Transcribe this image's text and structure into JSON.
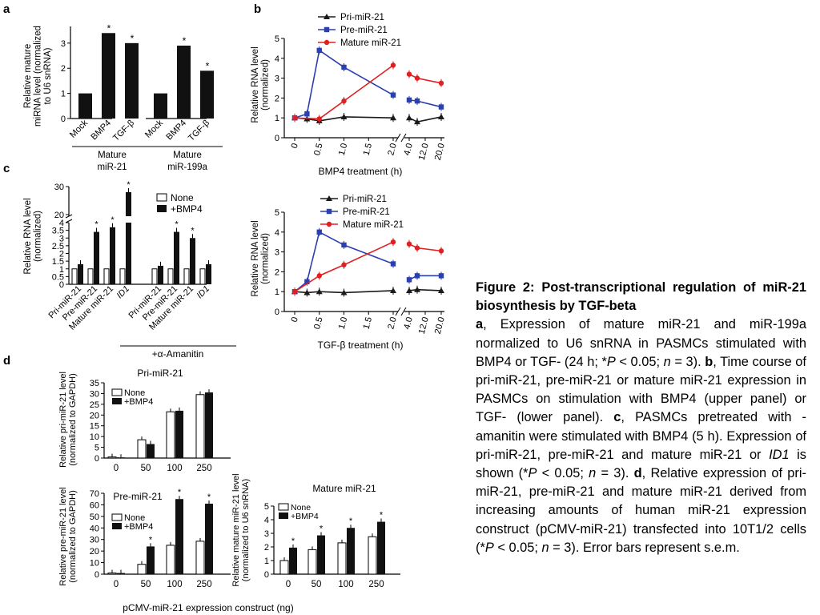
{
  "caption": {
    "title": "Figure 2: Post-transcriptional regulation of miR-21 biosynthesis by TGF-beta",
    "a_letter": "a",
    "a_text": ", Expression of mature miR-21 and miR-199a normalized to U6 snRNA in PASMCs stimulated with BMP4 or TGF- (24 h; *",
    "P": "P",
    "lt": " < 0.05; ",
    "n": "n",
    "eq3": " = 3). ",
    "b_letter": "b",
    "b_text": ", Time course of pri-miR-21, pre-miR-21 or mature miR-21 expression in PASMCs on stimulation with BMP4 (upper panel) or TGF- (lower panel). ",
    "c_letter": "c",
    "c_text": ", PASMCs pretreated with -amanitin were stimulated with BMP4 (5 h). Expression of pri-miR-21, pre-miR-21 and mature miR-21 or ",
    "id1": "ID1",
    "c_text2": " is shown (*",
    "d_letter": "d",
    "d_text": ", Relative expression of pri-miR-21, pre-miR-21 and mature miR-21 derived from increasing amounts of human miR-21 expression construct (pCMV-miR-21) transfected into 10T1/2 cells (*",
    "end_text": " = 3). Error bars represent s.e.m."
  },
  "panel_letters": {
    "a": "a",
    "b": "b",
    "c": "c",
    "d": "d"
  },
  "common": {
    "star": "*",
    "amanitin": "+α-Amanitin"
  },
  "chart_data": [
    {
      "id": "a",
      "type": "bar",
      "ylabel": "Relative mature miRNA level (normalized to U6 snRNA)",
      "ylabel_lines": [
        "Relative mature",
        "miRNA level (normalized",
        "to U6 snRNA)"
      ],
      "yticks": [
        "0",
        "1",
        "2",
        "3"
      ],
      "ylim": [
        0,
        3.6
      ],
      "groups": [
        {
          "name": "Mature miR-21",
          "name_lines": [
            "Mature",
            "miR-21"
          ],
          "categories": [
            "Mock",
            "BMP4",
            "TGF-β"
          ],
          "values": [
            1.0,
            3.4,
            3.0
          ],
          "stars": [
            false,
            true,
            true
          ]
        },
        {
          "name": "Mature miR-199a",
          "name_lines": [
            "Mature",
            "miR-199a"
          ],
          "categories": [
            "Mock",
            "BMP4",
            "TGF-β"
          ],
          "values": [
            1.0,
            2.9,
            1.9
          ],
          "stars": [
            false,
            true,
            true
          ]
        }
      ]
    },
    {
      "id": "b-upper",
      "type": "line",
      "xlabel": "BMP4 treatment (h)",
      "ylabel_lines": [
        "Relative RNA level",
        "(normalized)"
      ],
      "xticks_left": [
        "0",
        "0.5",
        "1.0",
        "1.5",
        "2.0"
      ],
      "xticks_right": [
        "4.0",
        "12.0",
        "20.0"
      ],
      "yticks": [
        "0",
        "1",
        "2",
        "3",
        "4",
        "5"
      ],
      "ylim": [
        0,
        5
      ],
      "series": [
        {
          "name": "Pri-miR-21",
          "color": "#1a1a1a",
          "marker": "tri",
          "left": [
            [
              0,
              1.0
            ],
            [
              0.25,
              0.95
            ],
            [
              0.5,
              0.85
            ],
            [
              1.0,
              1.05
            ],
            [
              2.0,
              1.0
            ]
          ],
          "right": [
            [
              4,
              1.0
            ],
            [
              8,
              0.8
            ],
            [
              20,
              1.05
            ]
          ]
        },
        {
          "name": "Pre-miR-21",
          "color": "#2a3fb0",
          "marker": "sq",
          "left": [
            [
              0,
              1.0
            ],
            [
              0.25,
              1.2
            ],
            [
              0.5,
              4.4
            ],
            [
              1.0,
              3.55
            ],
            [
              2.0,
              2.15
            ]
          ],
          "right": [
            [
              4,
              1.9
            ],
            [
              8,
              1.85
            ],
            [
              20,
              1.55
            ]
          ]
        },
        {
          "name": "Mature miR-21",
          "color": "#e02020",
          "marker": "dot",
          "left": [
            [
              0,
              1.0
            ],
            [
              0.5,
              0.95
            ],
            [
              1.0,
              1.85
            ],
            [
              2.0,
              3.65
            ]
          ],
          "right": [
            [
              4,
              3.2
            ],
            [
              8,
              3.0
            ],
            [
              20,
              2.75
            ]
          ]
        }
      ]
    },
    {
      "id": "b-lower",
      "type": "line",
      "xlabel": "TGF-β treatment (h)",
      "ylabel_lines": [
        "Relative RNA level",
        "(normalized)"
      ],
      "xticks_left": [
        "0",
        "0.5",
        "1.0",
        "1.5",
        "2.0"
      ],
      "xticks_right": [
        "4.0",
        "12.0",
        "20.0"
      ],
      "yticks": [
        "0",
        "1",
        "2",
        "3",
        "4",
        "5"
      ],
      "ylim": [
        0,
        5
      ],
      "series": [
        {
          "name": "Pri-miR-21",
          "color": "#1a1a1a",
          "marker": "tri",
          "left": [
            [
              0,
              1.0
            ],
            [
              0.25,
              0.95
            ],
            [
              0.5,
              1.0
            ],
            [
              1.0,
              0.95
            ],
            [
              2.0,
              1.05
            ]
          ],
          "right": [
            [
              4,
              1.05
            ],
            [
              8,
              1.1
            ],
            [
              20,
              1.05
            ]
          ]
        },
        {
          "name": "Pre-miR-21",
          "color": "#2a3fb0",
          "marker": "sq",
          "left": [
            [
              0,
              1.0
            ],
            [
              0.25,
              1.5
            ],
            [
              0.5,
              4.0
            ],
            [
              1.0,
              3.35
            ],
            [
              2.0,
              2.4
            ]
          ],
          "right": [
            [
              4,
              1.6
            ],
            [
              8,
              1.8
            ],
            [
              20,
              1.8
            ]
          ]
        },
        {
          "name": "Mature miR-21",
          "color": "#e02020",
          "marker": "dot",
          "left": [
            [
              0,
              1.0
            ],
            [
              0.5,
              1.8
            ],
            [
              1.0,
              2.35
            ],
            [
              2.0,
              3.5
            ]
          ],
          "right": [
            [
              4,
              3.4
            ],
            [
              8,
              3.2
            ],
            [
              20,
              3.05
            ]
          ]
        }
      ]
    },
    {
      "id": "c",
      "type": "bar",
      "ylabel_lines": [
        "Relative RNA level",
        "(normalized)"
      ],
      "yticks_low": [
        "0",
        "0.5",
        "1",
        "1.5",
        "2",
        "2.5",
        "3",
        "3.5",
        "4"
      ],
      "yticks_high": [
        "20",
        "30"
      ],
      "legend": [
        "None",
        "+BMP4"
      ],
      "categories": [
        "Pri-miR-21",
        "Pre-miR-21",
        "Mature miR-21",
        "ID1",
        "Pri-miR-21",
        "Pre-miR-21",
        "Mature miR-21",
        "ID1"
      ],
      "none": [
        1,
        1,
        1,
        1,
        1,
        1,
        1,
        1
      ],
      "bmp4": [
        1.3,
        3.4,
        3.7,
        28.0,
        1.2,
        3.4,
        3.0,
        1.3
      ],
      "stars": [
        false,
        true,
        true,
        true,
        false,
        true,
        true,
        false
      ]
    },
    {
      "id": "d-pri",
      "type": "bar",
      "title": "Pri-miR-21",
      "ylabel_lines": [
        "Relative pri-miR-21 level",
        "(normalized to GAPDH)"
      ],
      "yticks": [
        "0",
        "5",
        "10",
        "15",
        "20",
        "25",
        "30",
        "35"
      ],
      "ylim": [
        0,
        35
      ],
      "legend": [
        "None",
        "+BMP4"
      ],
      "categories": [
        "0",
        "50",
        "100",
        "250"
      ],
      "none": [
        0.5,
        8.5,
        21.5,
        29.5
      ],
      "bmp4": [
        0.3,
        6.5,
        22.0,
        30.5
      ]
    },
    {
      "id": "d-pre",
      "type": "bar",
      "title": "Pre-miR-21",
      "ylabel_lines": [
        "Relative pre-miR-21 level",
        "(normalized to GAPDH)"
      ],
      "yticks": [
        "0",
        "10",
        "20",
        "30",
        "40",
        "50",
        "60",
        "70"
      ],
      "ylim": [
        0,
        70
      ],
      "legend": [
        "None",
        "+BMP4"
      ],
      "categories": [
        "0",
        "50",
        "100",
        "250"
      ],
      "none": [
        1.0,
        8.5,
        25.0,
        28.5
      ],
      "bmp4": [
        1.0,
        24.0,
        65.0,
        61.0
      ],
      "stars": [
        false,
        true,
        true,
        true
      ]
    },
    {
      "id": "d-mature",
      "type": "bar",
      "title": "Mature miR-21",
      "ylabel_lines": [
        "Relative mature miR-21 level",
        "(normalized to U6 snRNA)"
      ],
      "yticks": [
        "0",
        "1",
        "2",
        "3",
        "4",
        "5"
      ],
      "ylim": [
        0,
        5
      ],
      "legend": [
        "None",
        "+BMP4"
      ],
      "categories": [
        "0",
        "50",
        "100",
        "250"
      ],
      "none": [
        1.0,
        1.8,
        2.3,
        2.75
      ],
      "bmp4": [
        1.95,
        2.85,
        3.4,
        3.85
      ],
      "stars": [
        true,
        true,
        true,
        true
      ]
    }
  ],
  "d_xlabel": "pCMV-miR-21 expression construct (ng)"
}
